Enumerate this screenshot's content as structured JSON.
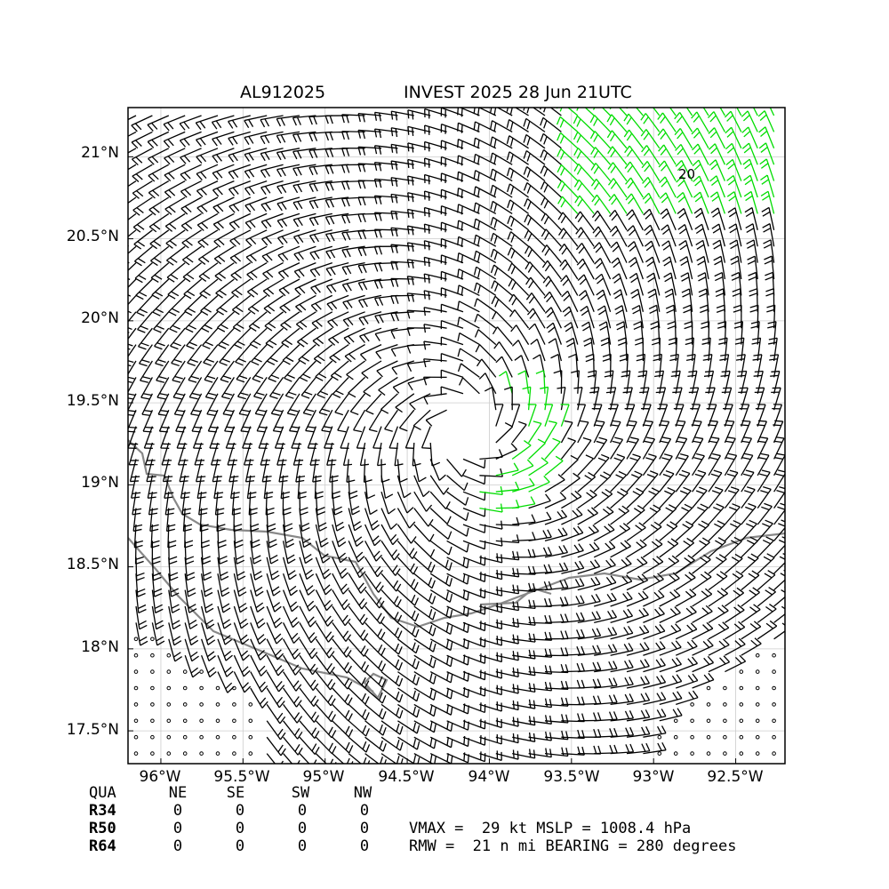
{
  "title": {
    "left": "AL912025",
    "right": "INVEST 2025 28 Jun 21UTC"
  },
  "axes": {
    "lat_labels": [
      "21°N",
      "20.5°N",
      "20°N",
      "19.5°N",
      "19°N",
      "18.5°N",
      "18°N",
      "17.5°N"
    ],
    "lat_values": [
      21,
      20.5,
      20,
      19.5,
      19,
      18.5,
      18,
      17.5
    ],
    "lon_labels": [
      "96°W",
      "95.5°W",
      "95°W",
      "94.5°W",
      "94°W",
      "93.5°W",
      "93°W",
      "92.5°W"
    ],
    "lon_values": [
      -96,
      -95.5,
      -95,
      -94.5,
      -94,
      -93.5,
      -93,
      -92.5
    ],
    "lat_range": [
      17.3,
      21.3
    ],
    "lon_range": [
      -96.2,
      -92.2
    ]
  },
  "storm": {
    "center_lat": 19.35,
    "center_lon": -94.15
  },
  "contour": {
    "label": "20"
  },
  "colors": {
    "barb": "#000000",
    "barb_strong": "#00dd00",
    "coast": "#888888",
    "grid": "#cccccc"
  },
  "quadrants": {
    "header": {
      "label": "QUA",
      "cols": [
        "NE",
        "SE",
        "SW",
        "NW"
      ]
    },
    "rows": [
      {
        "label": "R34",
        "values": [
          "0",
          "0",
          "0",
          "0"
        ]
      },
      {
        "label": "R50",
        "values": [
          "0",
          "0",
          "0",
          "0"
        ]
      },
      {
        "label": "R64",
        "values": [
          "0",
          "0",
          "0",
          "0"
        ]
      }
    ]
  },
  "summary": {
    "line1": "VMAX =  29 kt MSLP = 1008.4 hPa",
    "line2": "RMW =  21 n mi BEARING = 280 degrees"
  }
}
